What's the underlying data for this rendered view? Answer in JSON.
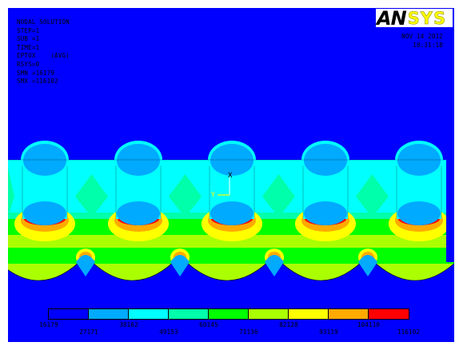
{
  "info_lines": [
    "NODAL SOLUTION",
    "STEP=1",
    "SUB =1",
    "TIME=1",
    "EPTOX    (AVG)",
    "RSYS=0",
    "SMN =16179",
    "SMX =116102"
  ],
  "date": "NOV 14 2012",
  "time": "18:31:18",
  "logo": {
    "an": "AN",
    "sys": "SYS"
  },
  "axis_labels": {
    "x": "X",
    "y": "Y"
  },
  "legend": {
    "values": [
      "16179",
      "27171",
      "38162",
      "49153",
      "60145",
      "71136",
      "82128",
      "93119",
      "104110",
      "116102"
    ],
    "colors": [
      "#0000ff",
      "#00aaff",
      "#00ffff",
      "#00ffaa",
      "#00ff00",
      "#aaff00",
      "#ffff00",
      "#ffaa00",
      "#ff0000"
    ]
  },
  "colors": {
    "background": "#0000ff",
    "band_cyan": "#00ffff",
    "band_mint": "#00ffaa",
    "band_green": "#00ff00",
    "band_lime": "#aaff00",
    "band_yellow": "#ffff00",
    "band_orange": "#ffaa00",
    "band_red": "#ff0000",
    "band_sky": "#00aaff"
  }
}
